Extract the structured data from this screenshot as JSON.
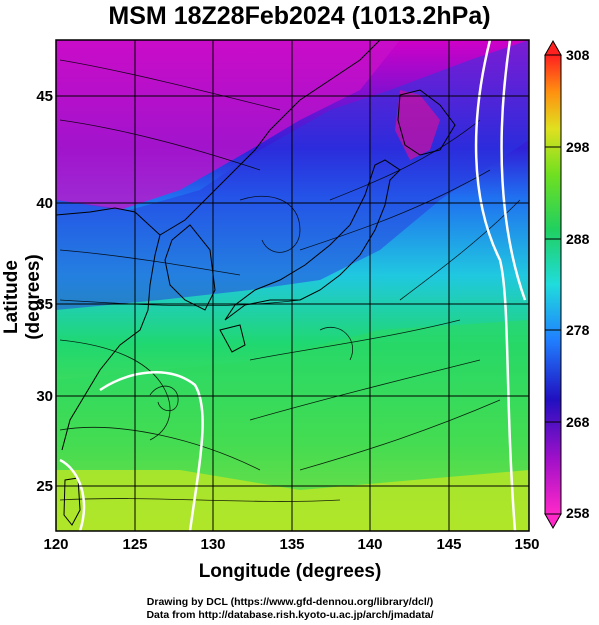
{
  "title": "MSM 18Z28Feb2024 (1013.2hPa)",
  "axes": {
    "xlabel": "Longitude (degrees)",
    "ylabel": "Latitude  (degrees)",
    "xticks": [
      "120",
      "125",
      "130",
      "135",
      "140",
      "145",
      "150"
    ],
    "yticks": [
      "45",
      "40",
      "35",
      "30",
      "25"
    ]
  },
  "colorbar": {
    "ticks": [
      "308",
      "298",
      "288",
      "278",
      "268",
      "258"
    ],
    "range": [
      258,
      308
    ]
  },
  "credits": {
    "line1": "Drawing by DCL (https://www.gfd-dennou.org/library/dcl/)",
    "line2": "Data from http://database.rish.kyoto-u.ac.jp/arch/jmadata/"
  },
  "colors": {
    "cold": "#d400c8",
    "cool": "#1c3ce0",
    "mid": "#21d6d6",
    "warm": "#2ee05a",
    "hot": "#d8e81f"
  },
  "chart_data": {
    "type": "heatmap",
    "title": "MSM 18Z28Feb2024 (1013.2hPa)",
    "xlabel": "Longitude (degrees)",
    "ylabel": "Latitude  (degrees)",
    "xlim": [
      120,
      150
    ],
    "ylim": [
      22.4,
      47.6
    ],
    "color_range": [
      258,
      308
    ],
    "overlay": "streamlines"
  }
}
